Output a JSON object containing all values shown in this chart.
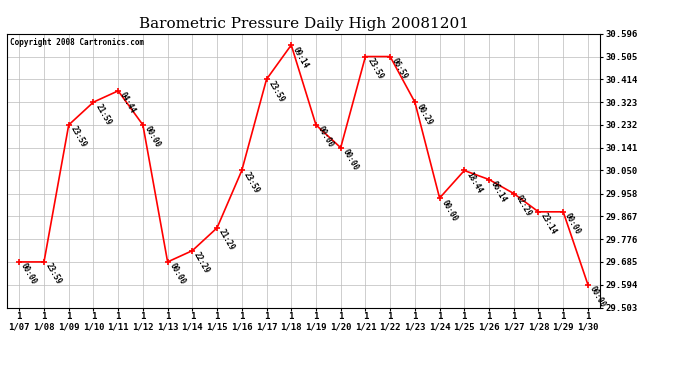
{
  "title": "Barometric Pressure Daily High 20081201",
  "copyright": "Copyright 2008 Cartronics.com",
  "x_labels": [
    "1\n1/07",
    "1\n1/08",
    "1\n1/09",
    "1\n1/10",
    "1\n1/11",
    "1\n1/12",
    "1\n1/13",
    "1\n1/14",
    "1\n1/15",
    "1\n1/16",
    "1\n1/17",
    "1\n1/18",
    "1\n1/19",
    "1\n1/20",
    "1\n1/21",
    "1\n1/22",
    "1\n1/23",
    "1\n1/24",
    "1\n1/25",
    "1\n1/26",
    "1\n1/27",
    "1\n1/28",
    "1\n1/29",
    "1\n1/30"
  ],
  "y_values": [
    29.685,
    29.685,
    30.232,
    30.323,
    30.368,
    30.232,
    29.685,
    29.73,
    29.821,
    30.05,
    30.414,
    30.551,
    30.232,
    30.141,
    30.505,
    30.505,
    30.323,
    29.94,
    30.05,
    30.014,
    29.958,
    29.885,
    29.885,
    29.594
  ],
  "point_labels": [
    "00:00",
    "23:59",
    "23:59",
    "21:59",
    "04:44",
    "00:00",
    "00:00",
    "22:29",
    "21:29",
    "23:59",
    "23:59",
    "09:14",
    "00:00",
    "00:00",
    "23:59",
    "06:59",
    "00:29",
    "00:00",
    "18:44",
    "06:14",
    "02:29",
    "23:14",
    "00:00",
    "00:00"
  ],
  "line_color": "#ff0000",
  "marker_color": "#ff0000",
  "background_color": "#ffffff",
  "grid_color": "#bbbbbb",
  "title_fontsize": 11,
  "y_ticks": [
    29.503,
    29.594,
    29.685,
    29.776,
    29.867,
    29.958,
    30.05,
    30.141,
    30.232,
    30.323,
    30.414,
    30.505,
    30.596
  ]
}
